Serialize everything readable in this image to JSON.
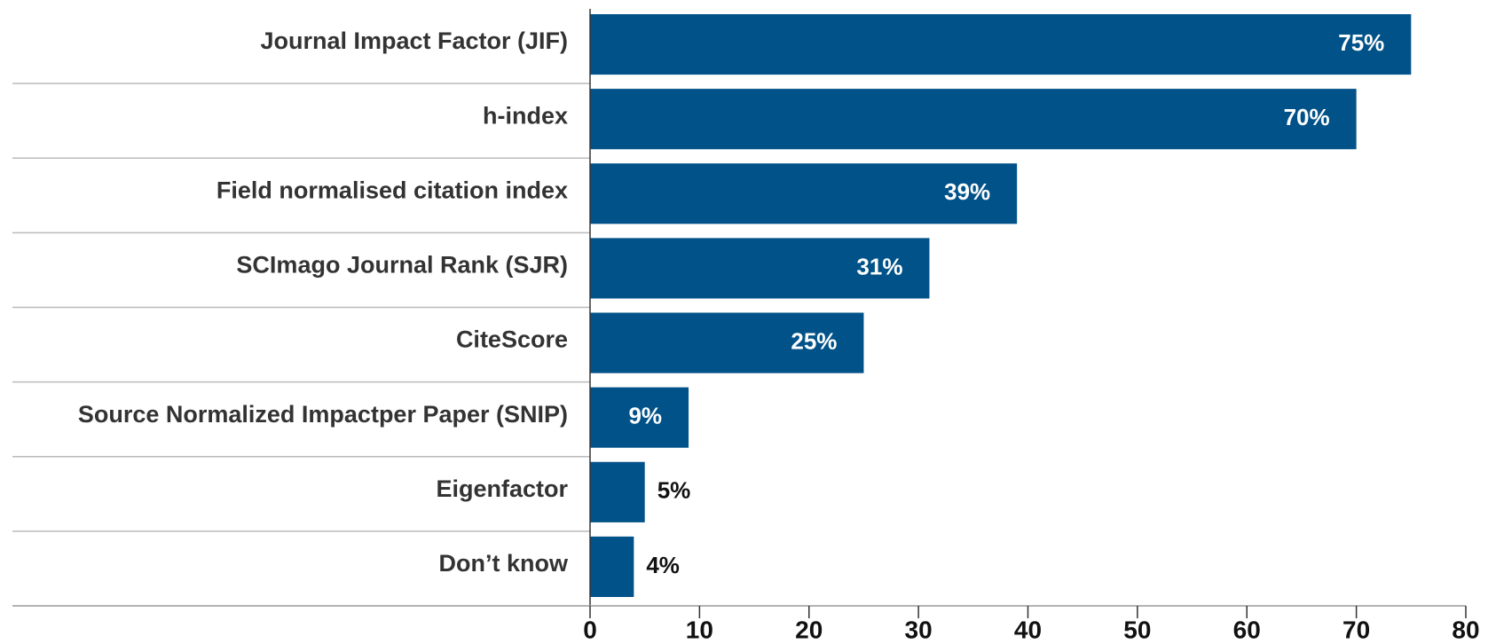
{
  "chart_data": {
    "type": "hbar",
    "categories": [
      "Journal Impact Factor (JIF)",
      "h-index",
      "Field normalised citation index",
      "SCImago Journal Rank (SJR)",
      "CiteScore",
      "Source Normalized Impactper Paper (SNIP)",
      "Eigenfactor",
      "Don’t know"
    ],
    "values": [
      75,
      70,
      39,
      31,
      25,
      9,
      5,
      4
    ],
    "value_labels": [
      "75%",
      "70%",
      "39%",
      "31%",
      "25%",
      "9%",
      "5%",
      "4%"
    ],
    "color": "#005288",
    "xlim": [
      0,
      80
    ],
    "xticks": [
      0,
      10,
      20,
      30,
      40,
      50,
      60,
      70,
      80
    ]
  }
}
